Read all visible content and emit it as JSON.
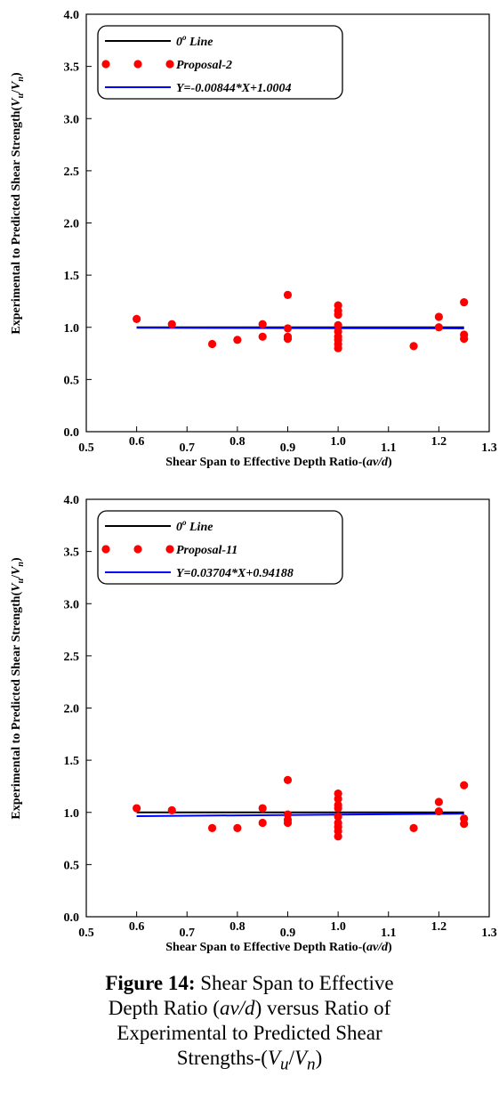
{
  "chart_data": [
    {
      "type": "scatter",
      "xlim": [
        0.5,
        1.3
      ],
      "ylim": [
        0.0,
        4.0
      ],
      "x_ticks": [
        "0.5",
        "0.6",
        "0.7",
        "0.8",
        "0.9",
        "1.0",
        "1.1",
        "1.2",
        "1.3"
      ],
      "y_ticks": [
        "0.0",
        "0.5",
        "1.0",
        "1.5",
        "2.0",
        "2.5",
        "3.0",
        "3.5",
        "4.0"
      ],
      "xlabel_main": "Shear Span to Effective Depth Ratio-(",
      "xlabel_italic": "av/d",
      "xlabel_end": ")",
      "ylabel_main": "Experimental to Predicted Shear Strength(",
      "ylabel_vu": "V",
      "ylabel_vu_sub": "u",
      "ylabel_slash": "/",
      "ylabel_vn": "V",
      "ylabel_vn_sub": "n",
      "ylabel_end": ")",
      "grid": false,
      "legend_position": "top-left",
      "legend": [
        {
          "kind": "line",
          "color": "#000000",
          "label": "0",
          "sup": "o",
          "rest": " Line"
        },
        {
          "kind": "points",
          "color": "#ff0000",
          "label": "Proposal-2"
        },
        {
          "kind": "line",
          "color": "#0000ff",
          "label": "Y=-0.00844*X+1.0004"
        }
      ],
      "reference_line": {
        "x": [
          0.6,
          1.25
        ],
        "y": [
          1.0,
          1.0
        ],
        "color": "#000000"
      },
      "fit_line": {
        "slope": -0.00844,
        "intercept": 1.0004,
        "x": [
          0.6,
          1.25
        ],
        "color": "#0000ff"
      },
      "points": [
        [
          0.6,
          1.08
        ],
        [
          0.67,
          1.03
        ],
        [
          0.75,
          0.84
        ],
        [
          0.8,
          0.88
        ],
        [
          0.85,
          0.91
        ],
        [
          0.85,
          1.03
        ],
        [
          0.9,
          0.89
        ],
        [
          0.9,
          0.91
        ],
        [
          0.9,
          0.99
        ],
        [
          0.9,
          1.31
        ],
        [
          1.0,
          0.8
        ],
        [
          1.0,
          0.84
        ],
        [
          1.0,
          0.88
        ],
        [
          1.0,
          0.91
        ],
        [
          1.0,
          0.96
        ],
        [
          1.0,
          1.02
        ],
        [
          1.0,
          1.12
        ],
        [
          1.0,
          1.16
        ],
        [
          1.0,
          1.21
        ],
        [
          1.15,
          0.82
        ],
        [
          1.2,
          1.0
        ],
        [
          1.2,
          1.1
        ],
        [
          1.25,
          0.89
        ],
        [
          1.25,
          0.93
        ],
        [
          1.25,
          1.24
        ]
      ]
    },
    {
      "type": "scatter",
      "xlim": [
        0.5,
        1.3
      ],
      "ylim": [
        0.0,
        4.0
      ],
      "x_ticks": [
        "0.5",
        "0.6",
        "0.7",
        "0.8",
        "0.9",
        "1.0",
        "1.1",
        "1.2",
        "1.3"
      ],
      "y_ticks": [
        "0.0",
        "0.5",
        "1.0",
        "1.5",
        "2.0",
        "2.5",
        "3.0",
        "3.5",
        "4.0"
      ],
      "xlabel_main": "Shear Span to Effective Depth Ratio-(",
      "xlabel_italic": "av/d",
      "xlabel_end": ")",
      "ylabel_main": "Experimental to Predicted Shear Strength(",
      "ylabel_vu": "V",
      "ylabel_vu_sub": "u",
      "ylabel_slash": "/",
      "ylabel_vn": "V",
      "ylabel_vn_sub": "n",
      "ylabel_end": ")",
      "grid": false,
      "legend_position": "top-left",
      "legend": [
        {
          "kind": "line",
          "color": "#000000",
          "label": "0",
          "sup": "o",
          "rest": " Line"
        },
        {
          "kind": "points",
          "color": "#ff0000",
          "label": "Proposal-11"
        },
        {
          "kind": "line",
          "color": "#0000ff",
          "label": "Y=0.03704*X+0.94188"
        }
      ],
      "reference_line": {
        "x": [
          0.6,
          1.25
        ],
        "y": [
          1.0,
          1.0
        ],
        "color": "#000000"
      },
      "fit_line": {
        "slope": 0.03704,
        "intercept": 0.94188,
        "x": [
          0.6,
          1.25
        ],
        "color": "#0000ff"
      },
      "points": [
        [
          0.6,
          1.04
        ],
        [
          0.67,
          1.02
        ],
        [
          0.75,
          0.85
        ],
        [
          0.8,
          0.85
        ],
        [
          0.85,
          0.9
        ],
        [
          0.85,
          1.04
        ],
        [
          0.9,
          0.9
        ],
        [
          0.9,
          0.93
        ],
        [
          0.9,
          0.98
        ],
        [
          0.9,
          1.31
        ],
        [
          1.0,
          0.77
        ],
        [
          1.0,
          0.82
        ],
        [
          1.0,
          0.86
        ],
        [
          1.0,
          0.9
        ],
        [
          1.0,
          0.96
        ],
        [
          1.0,
          1.04
        ],
        [
          1.0,
          1.07
        ],
        [
          1.0,
          1.13
        ],
        [
          1.0,
          1.18
        ],
        [
          1.15,
          0.85
        ],
        [
          1.2,
          1.01
        ],
        [
          1.2,
          1.1
        ],
        [
          1.25,
          0.89
        ],
        [
          1.25,
          0.94
        ],
        [
          1.25,
          1.26
        ]
      ]
    }
  ],
  "caption": {
    "figure_label": "Figure 14:",
    "text_1": " Shear Span to Effective",
    "text_2": "Depth Ratio (",
    "text_2_italic": "av/d",
    "text_2_end": ") versus Ratio of",
    "text_3": "Experimental to Predicted Shear",
    "text_4": "Strengths-(",
    "v1": "V",
    "v1_sub": "u",
    "slash": "/",
    "v2": "V",
    "v2_sub": "n",
    "text_4_end": ")"
  }
}
